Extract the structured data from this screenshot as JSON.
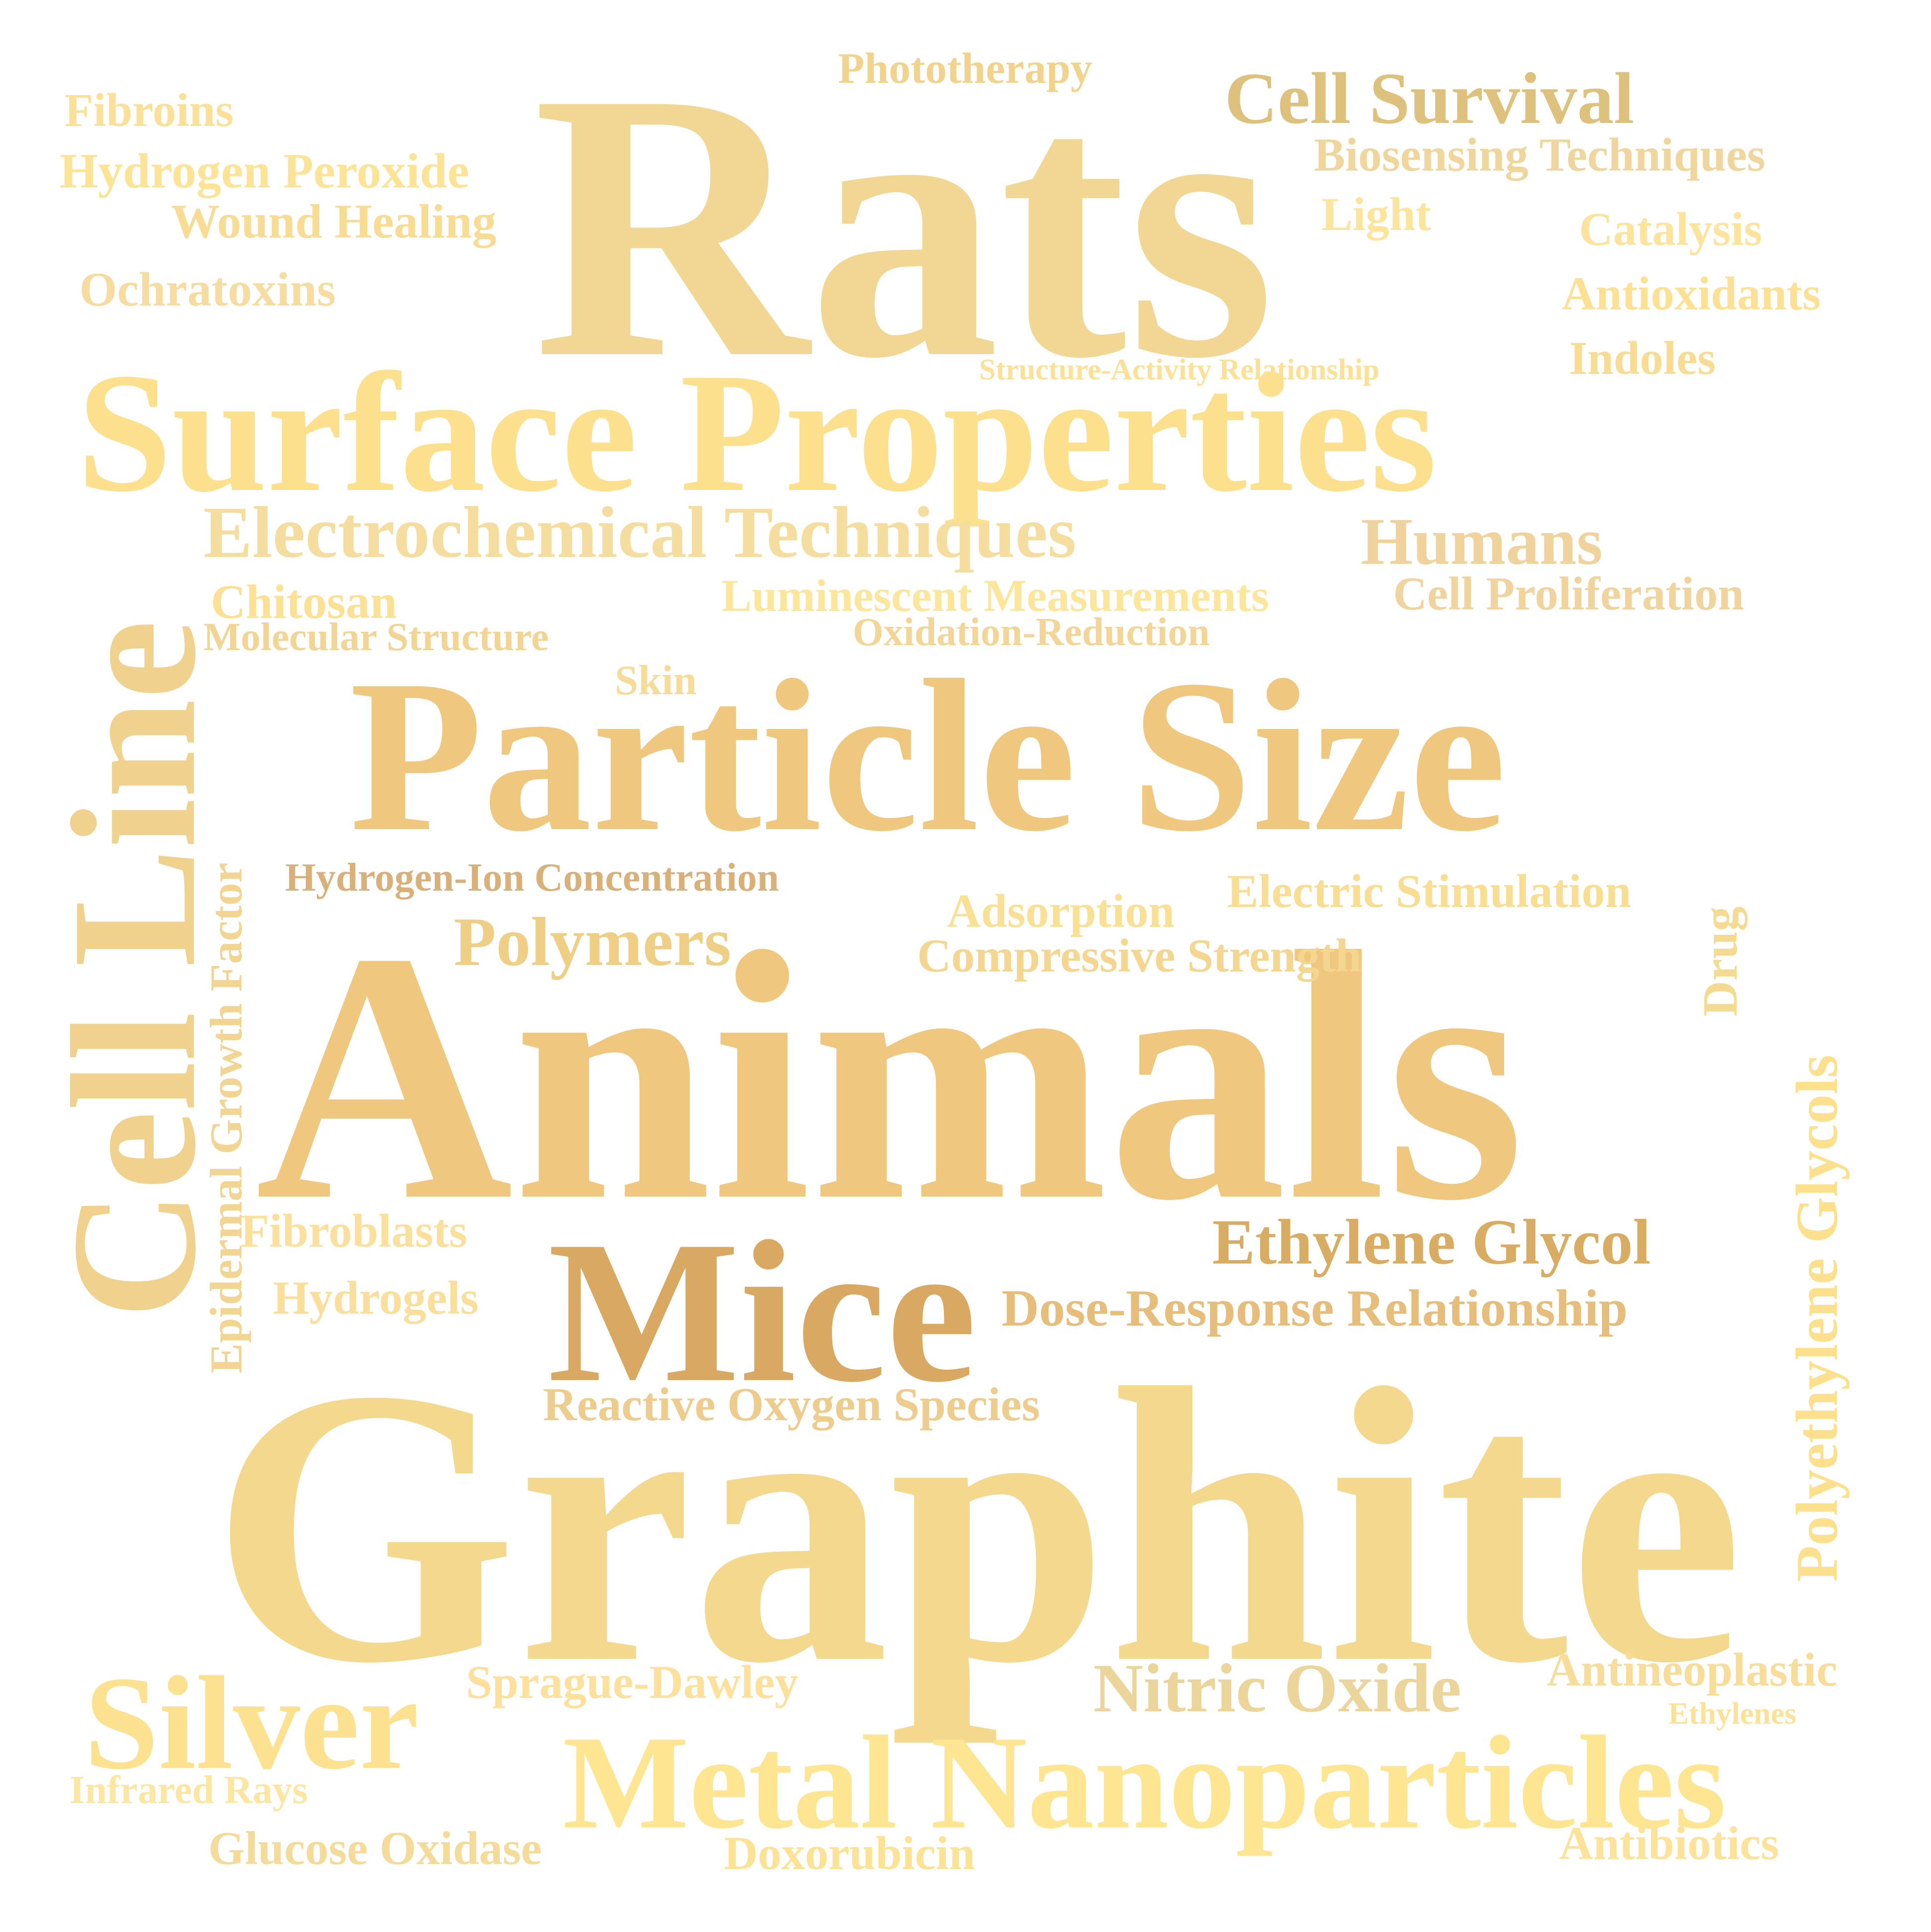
{
  "word_cloud": {
    "words": {
      "rats": {
        "text": "Rats",
        "color": "#F2D794"
      },
      "surface_properties": {
        "text": "Surface Properties",
        "color": "#FCE08E"
      },
      "particle_size": {
        "text": "Particle Size",
        "color": "#EFC77E"
      },
      "animals": {
        "text": "Animals",
        "color": "#EFC77E"
      },
      "graphite": {
        "text": "Graphite",
        "color": "#F3D88D"
      },
      "cell_line": {
        "text": "Cell Line",
        "color": "#F0D28E"
      },
      "mice": {
        "text": "Mice",
        "color": "#D9A862"
      },
      "metal_nanoparticles": {
        "text": "Metal Nanoparticles",
        "color": "#FDE592"
      },
      "silver": {
        "text": "Silver",
        "color": "#FCE191"
      },
      "electrochemical_techniques": {
        "text": "Electrochemical Techniques",
        "color": "#F5DDA0"
      },
      "cell_survival": {
        "text": "Cell Survival",
        "color": "#DEC17D"
      },
      "humans": {
        "text": "Humans",
        "color": "#F0D29C"
      },
      "polymers": {
        "text": "Polymers",
        "color": "#EFCF86"
      },
      "ethylene_glycol": {
        "text": "Ethylene Glycol",
        "color": "#D9AC64"
      },
      "nitric_oxide": {
        "text": "Nitric Oxide",
        "color": "#EBD59A"
      },
      "polyethylene_glycols": {
        "text": "Polyethylene Glycols",
        "color": "#FCE08E"
      },
      "epidermal_growth_factor": {
        "text": "Epidermal Growth Factor",
        "color": "#F2D493"
      },
      "drug": {
        "text": "Drug",
        "color": "#F5DB92"
      },
      "phototherapy": {
        "text": "Phototherapy",
        "color": "#F2D38E"
      },
      "fibroins": {
        "text": "Fibroins",
        "color": "#FBE09A"
      },
      "hydrogen_peroxide": {
        "text": "Hydrogen Peroxide",
        "color": "#FCE395"
      },
      "wound_healing": {
        "text": "Wound Healing",
        "color": "#F8DC94"
      },
      "ochratoxins": {
        "text": "Ochratoxins",
        "color": "#F6DCA0"
      },
      "biosensing_techniques": {
        "text": "Biosensing Techniques",
        "color": "#F0D59C"
      },
      "light": {
        "text": "Light",
        "color": "#FDE49C"
      },
      "catalysis": {
        "text": "Catalysis",
        "color": "#FDE39C"
      },
      "antioxidants": {
        "text": "Antioxidants",
        "color": "#FCE195"
      },
      "structure_activity_relationship": {
        "text": "Structure-Activity Relationship",
        "color": "#FCE095"
      },
      "indoles": {
        "text": "Indoles",
        "color": "#F8DC93"
      },
      "chitosan": {
        "text": "Chitosan",
        "color": "#FCE093"
      },
      "molecular_structure": {
        "text": "Molecular Structure",
        "color": "#F2D494"
      },
      "luminescent_measurements": {
        "text": "Luminescent Measurements",
        "color": "#FCE69B"
      },
      "cell_proliferation": {
        "text": "Cell Proliferation",
        "color": "#F0D39D"
      },
      "oxidation_reduction": {
        "text": "Oxidation-Reduction",
        "color": "#F3D597"
      },
      "skin": {
        "text": "Skin",
        "color": "#F7DB99"
      },
      "hydrogen_ion_concentration": {
        "text": "Hydrogen-Ion Concentration",
        "color": "#DAB07A"
      },
      "adsorption": {
        "text": "Adsorption",
        "color": "#FAE095"
      },
      "electric_stimulation": {
        "text": "Electric Stimulation",
        "color": "#F9DD93"
      },
      "compressive_strength": {
        "text": "Compressive Strength",
        "color": "#F5D690"
      },
      "fibroblasts": {
        "text": "Fibroblasts",
        "color": "#FAE09C"
      },
      "hydrogels": {
        "text": "Hydrogels",
        "color": "#F9DF9B"
      },
      "dose_response_relationship": {
        "text": "Dose-Response Relationship",
        "color": "#E6BD7B"
      },
      "reactive_oxygen_species": {
        "text": "Reactive Oxygen Species",
        "color": "#EECC8D"
      },
      "sprague_dawley": {
        "text": "Sprague-Dawley",
        "color": "#FCE09B"
      },
      "antineoplastic": {
        "text": "Antineoplastic",
        "color": "#F8DC99"
      },
      "ethylenes": {
        "text": "Ethylenes",
        "color": "#FCE197"
      },
      "infrared_rays": {
        "text": "Infrared Rays",
        "color": "#FCE6A1"
      },
      "glucose_oxidase": {
        "text": "Glucose Oxidase",
        "color": "#F5DB99"
      },
      "doxorubicin": {
        "text": "Doxorubicin",
        "color": "#FCE294"
      },
      "antibiotics": {
        "text": "Antibiotics",
        "color": "#FCE29B"
      }
    }
  }
}
